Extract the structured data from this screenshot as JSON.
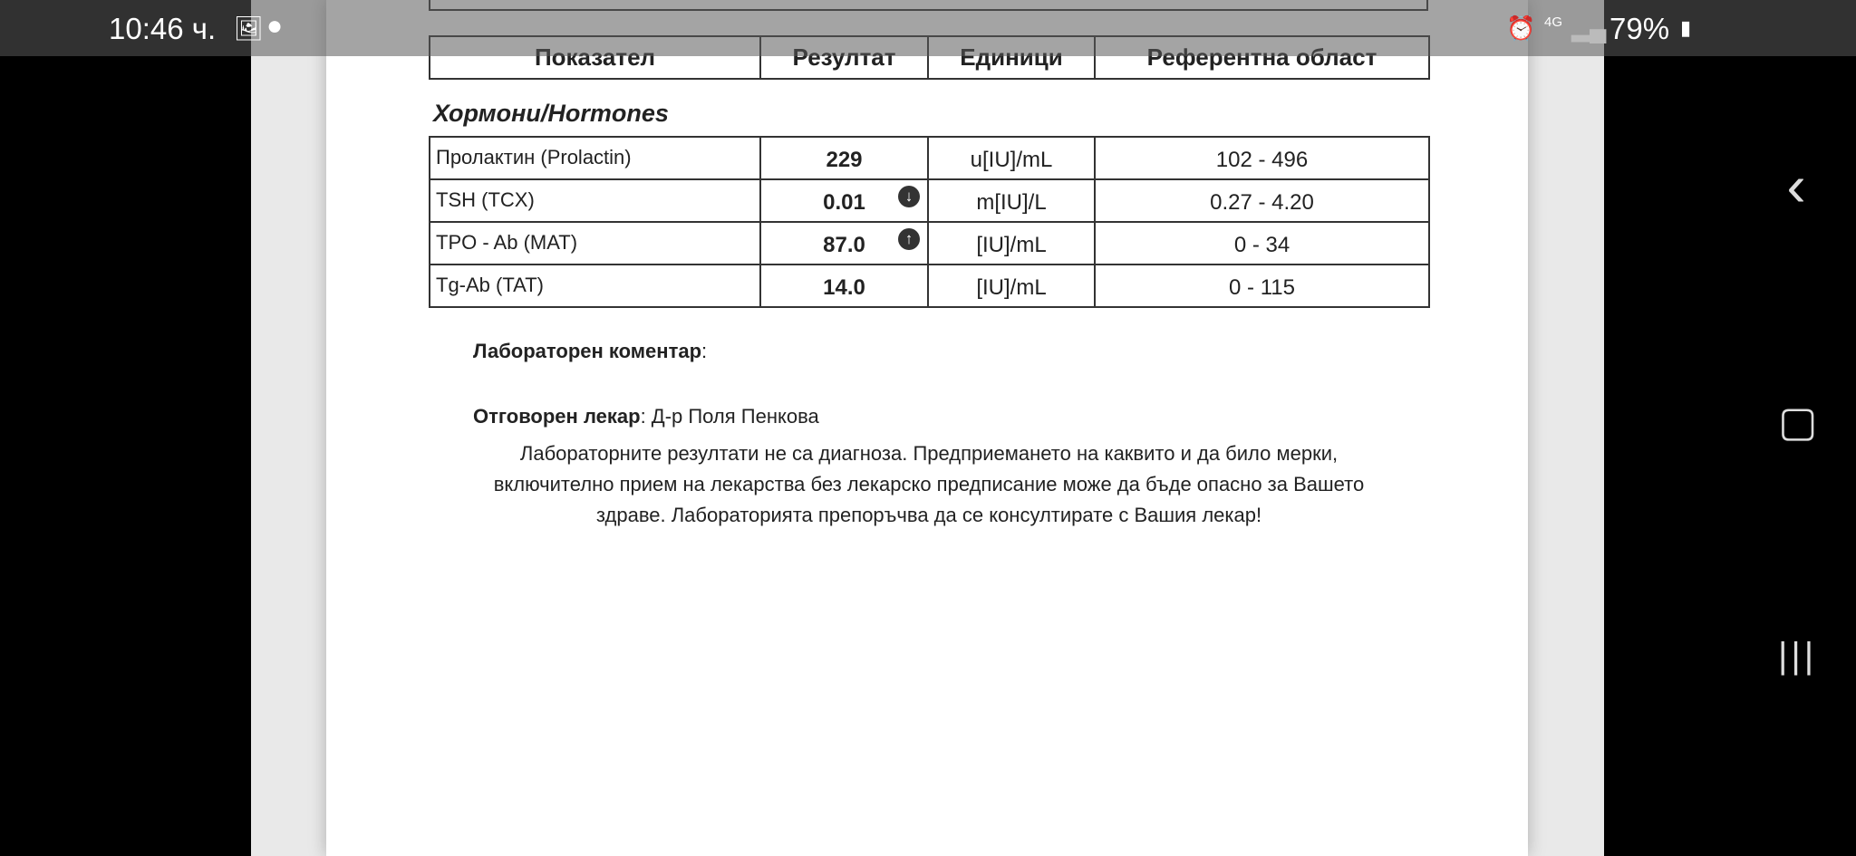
{
  "status_bar": {
    "time": "10:46 ч.",
    "battery": "79%",
    "network": "4G",
    "icons": [
      "gallery-icon",
      "app-icon",
      "alarm-icon",
      "signal-icon",
      "battery-icon"
    ]
  },
  "table_header": [
    "Показател",
    "Резултат",
    "Единици",
    "Референтна област"
  ],
  "section_title": "Хормони/Hormones",
  "rows": [
    {
      "name": "Пролактин (Prolactin)",
      "value": "229",
      "unit": "u[IU]/mL",
      "range": "102 - 496",
      "flag": ""
    },
    {
      "name": "TSH (TCX)",
      "value": "0.01",
      "unit": "m[IU]/L",
      "range": "0.27 - 4.20",
      "flag": "low"
    },
    {
      "name": "TPO - Ab (MAT)",
      "value": "87.0",
      "unit": "[IU]/mL",
      "range": "0 - 34",
      "flag": "high"
    },
    {
      "name": "Tg-Ab (TAT)",
      "value": "14.0",
      "unit": "[IU]/mL",
      "range": "0 - 115",
      "flag": ""
    }
  ],
  "comment_label": "Лабораторен коментар",
  "doctor_label": "Отговорен лекар",
  "doctor_name": "Д-р Поля Пенкова",
  "disclaimer": [
    "Лабораторните резултати не са диагноза. Предприемането на каквито и да било мерки,",
    "включително прием на лекарства без лекарско предписание може да бъде опасно за Вашето",
    "здраве. Лабораторията препоръчва да се консултирате с Вашия лекар!"
  ],
  "nav": {
    "back": "‹",
    "home": "▢",
    "recents": "|||"
  }
}
